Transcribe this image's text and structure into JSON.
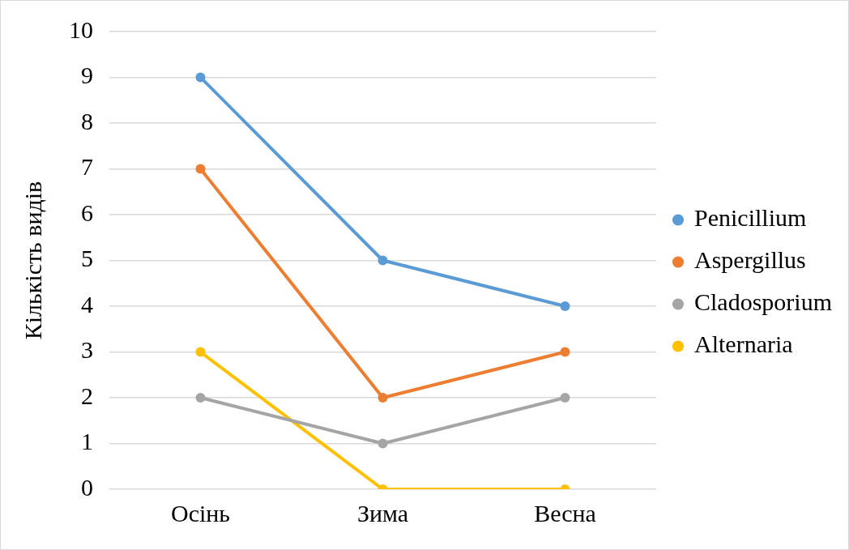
{
  "chart_data": {
    "type": "line",
    "ylabel": "Кількість видів",
    "categories": [
      "Осінь",
      "Зима",
      "Весна"
    ],
    "series": [
      {
        "name": "Penicillium",
        "color": "#5b9bd5",
        "values": [
          9,
          5,
          4
        ]
      },
      {
        "name": "Aspergillus",
        "color": "#ed7d31",
        "values": [
          7,
          2,
          3
        ]
      },
      {
        "name": "Cladosporium",
        "color": "#a5a5a5",
        "values": [
          2,
          1,
          2
        ]
      },
      {
        "name": "Alternaria",
        "color": "#ffc000",
        "values": [
          3,
          0,
          0
        ]
      }
    ],
    "ylim": [
      0,
      10
    ],
    "yticks": [
      0,
      1,
      2,
      3,
      4,
      5,
      6,
      7,
      8,
      9,
      10
    ],
    "grid": "y",
    "legend": "right",
    "marker": "circle",
    "line_style": "solid"
  }
}
